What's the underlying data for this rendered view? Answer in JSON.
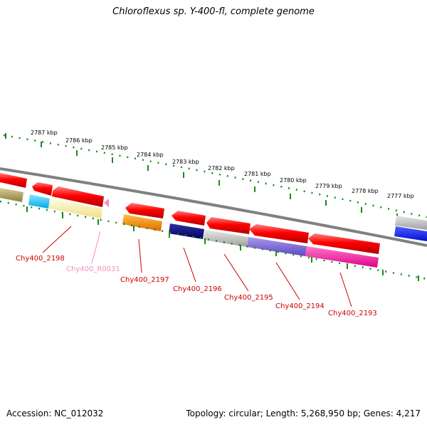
{
  "title": "Chloroflexus sp. Y-400-fl, complete genome",
  "accession": "Accession: NC_012032",
  "summary": "Topology: circular; Length: 5,268,950 bp; Genes: 4,217",
  "colors": {
    "backbone": "#808080",
    "ticks": "#1a8a1a",
    "gene_label": "#cc0000",
    "rna_label": "#f090c0"
  },
  "tick_labels": [
    "2787 kbp",
    "2786 kbp",
    "2785 kbp",
    "2784 kbp",
    "2783 kbp",
    "2782 kbp",
    "2781 kbp",
    "2780 kbp",
    "2779 kbp",
    "2778 kbp",
    "2777 kbp"
  ],
  "genes": [
    {
      "label": "Chy400_2198"
    },
    {
      "label": "Chy400_R0031"
    },
    {
      "label": "Chy400_2197"
    },
    {
      "label": "Chy400_2196"
    },
    {
      "label": "Chy400_2195"
    },
    {
      "label": "Chy400_2194"
    },
    {
      "label": "Chy400_2193"
    }
  ]
}
